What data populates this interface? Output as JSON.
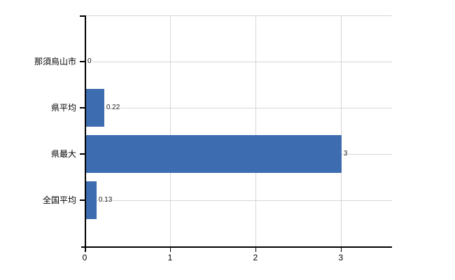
{
  "chart_data": {
    "type": "bar",
    "orientation": "horizontal",
    "title": "",
    "xlabel": "",
    "ylabel": "",
    "categories": [
      "那須烏山市",
      "県平均",
      "県最大",
      "全国平均"
    ],
    "values": [
      0,
      0.22,
      3,
      0.13
    ],
    "value_labels": [
      "0",
      "0.22",
      "3",
      "0.13"
    ],
    "x_ticks": [
      0,
      1,
      2,
      3
    ],
    "x_tick_labels": [
      "0",
      "1",
      "2",
      "3"
    ],
    "xlim": [
      0,
      3.6
    ],
    "grid": true,
    "legend_position": "none",
    "bar_color": "#3d6db0",
    "gridline_color": "#d6d6d6",
    "axis_color": "#000000",
    "label_color": "#000000"
  }
}
